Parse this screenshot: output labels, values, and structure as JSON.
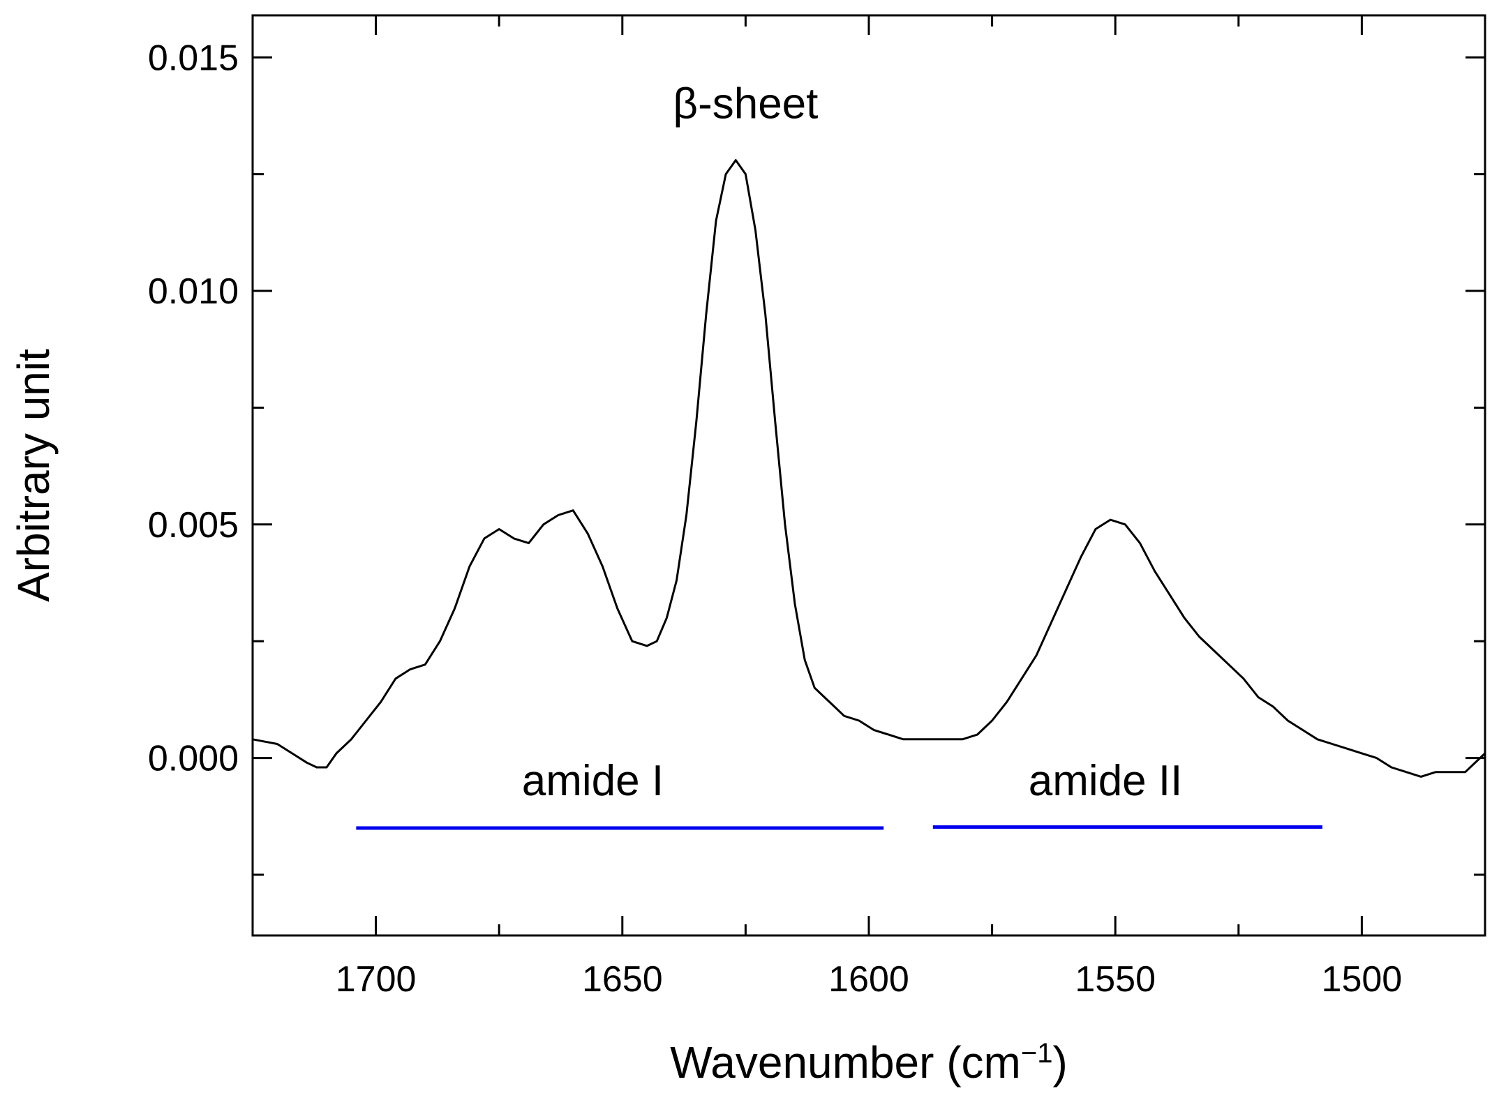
{
  "chart_data": {
    "type": "line",
    "title": "",
    "xlabel": "Wavenumber (cm",
    "xlabel_sup": "−1",
    "xlabel_close": ")",
    "ylabel": "Arbitrary unit",
    "xlim": [
      1725,
      1475
    ],
    "ylim": [
      -0.0038,
      0.0159
    ],
    "x_ticks": [
      1700,
      1650,
      1600,
      1550,
      1500
    ],
    "x_tick_labels": [
      "1700",
      "1650",
      "1600",
      "1550",
      "1500"
    ],
    "x_minor_ticks": [
      1725,
      1675,
      1625,
      1575,
      1525,
      1475
    ],
    "y_ticks": [
      0.0,
      0.005,
      0.01,
      0.015
    ],
    "y_tick_labels": [
      "0.000",
      "0.005",
      "0.010",
      "0.015"
    ],
    "y_minor_ticks": [
      -0.0025,
      0.0025,
      0.0075,
      0.0125
    ],
    "grid": false,
    "series": [
      {
        "name": "spectrum",
        "color": "#000000",
        "x": [
          1725,
          1720,
          1717,
          1714,
          1712,
          1710,
          1708,
          1705,
          1702,
          1699,
          1696,
          1693,
          1690,
          1687,
          1684,
          1681,
          1678,
          1675,
          1672,
          1669,
          1666,
          1663,
          1660,
          1657,
          1654,
          1651,
          1648,
          1645,
          1643,
          1641,
          1639,
          1637,
          1635,
          1633,
          1631,
          1629,
          1627,
          1625,
          1623,
          1621,
          1619,
          1617,
          1615,
          1613,
          1611,
          1609,
          1607,
          1605,
          1602,
          1599,
          1596,
          1593,
          1590,
          1587,
          1584,
          1581,
          1578,
          1575,
          1572,
          1569,
          1566,
          1563,
          1560,
          1557,
          1554,
          1551,
          1548,
          1545,
          1542,
          1539,
          1536,
          1533,
          1530,
          1527,
          1524,
          1521,
          1518,
          1515,
          1512,
          1509,
          1506,
          1503,
          1500,
          1497,
          1494,
          1491,
          1488,
          1485,
          1482,
          1479,
          1475
        ],
        "y": [
          0.0004,
          0.0003,
          0.0001,
          -0.0001,
          -0.0002,
          -0.0002,
          0.0001,
          0.0004,
          0.0008,
          0.0012,
          0.0017,
          0.0019,
          0.002,
          0.0025,
          0.0032,
          0.0041,
          0.0047,
          0.0049,
          0.0047,
          0.0046,
          0.005,
          0.0052,
          0.0053,
          0.0048,
          0.0041,
          0.0032,
          0.0025,
          0.0024,
          0.0025,
          0.003,
          0.0038,
          0.0052,
          0.0072,
          0.0095,
          0.0115,
          0.0125,
          0.0128,
          0.0125,
          0.0113,
          0.0095,
          0.0072,
          0.005,
          0.0033,
          0.0021,
          0.0015,
          0.0013,
          0.0011,
          0.0009,
          0.0008,
          0.0006,
          0.0005,
          0.0004,
          0.0004,
          0.0004,
          0.0004,
          0.0004,
          0.0005,
          0.0008,
          0.0012,
          0.0017,
          0.0022,
          0.0029,
          0.0036,
          0.0043,
          0.0049,
          0.0051,
          0.005,
          0.0046,
          0.004,
          0.0035,
          0.003,
          0.0026,
          0.0023,
          0.002,
          0.0017,
          0.0013,
          0.0011,
          0.0008,
          0.0006,
          0.0004,
          0.0003,
          0.0002,
          0.0001,
          0.0,
          -0.0002,
          -0.0003,
          -0.0004,
          -0.0003,
          -0.0003,
          -0.0003,
          0.0001
        ]
      }
    ],
    "annotations": [
      {
        "text": "β-sheet",
        "x": 1625,
        "y": 0.0137
      },
      {
        "text": "amide I",
        "x": 1656,
        "y": -0.0008
      },
      {
        "text": "amide II",
        "x": 1552,
        "y": -0.0008
      }
    ],
    "range_lines": [
      {
        "name": "amide-i-range",
        "x_start": 1704,
        "x_end": 1597,
        "y": -0.0015,
        "color": "#0000ee"
      },
      {
        "name": "amide-ii-range",
        "x_start": 1587,
        "x_end": 1508,
        "y": -0.00148,
        "color": "#0000ee"
      }
    ]
  }
}
